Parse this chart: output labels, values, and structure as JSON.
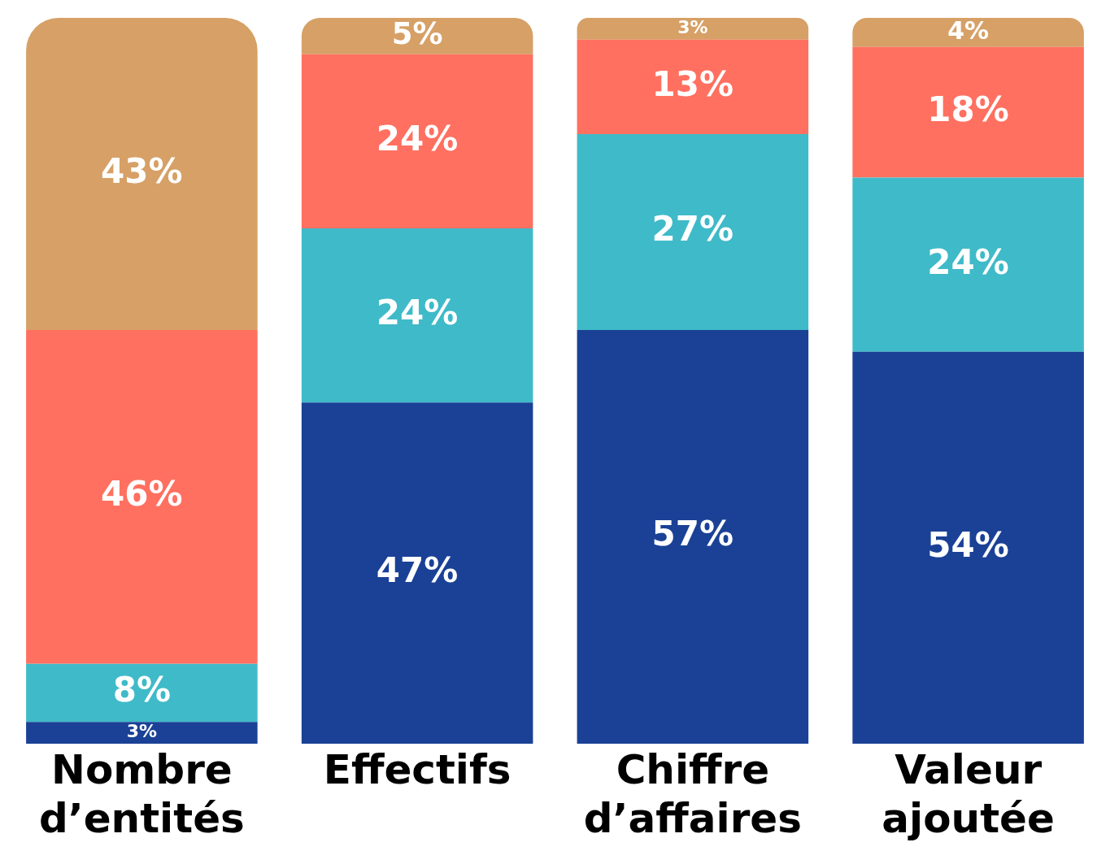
{
  "chart_data": {
    "type": "bar",
    "stacked": true,
    "grid": false,
    "legend": false,
    "tick_labels": "x",
    "categories": [
      "Nombre d’entités",
      "Effectifs",
      "Chiffre d’affaires",
      "Valeur ajoutée"
    ],
    "series": [
      {
        "color": "#1a4196",
        "values": [
          3,
          47,
          57,
          54
        ],
        "value_labels": [
          "3%",
          "47%",
          "57%",
          "54%"
        ]
      },
      {
        "color": "#3fbac8",
        "values": [
          8,
          24,
          27,
          24
        ],
        "value_labels": [
          "8%",
          "24%",
          "27%",
          "24%"
        ]
      },
      {
        "color": "#ff7060",
        "values": [
          46,
          24,
          13,
          18
        ],
        "value_labels": [
          "46%",
          "24%",
          "13%",
          "18%"
        ]
      },
      {
        "color": "#d6a066",
        "values": [
          43,
          5,
          3,
          4
        ],
        "value_labels": [
          "43%",
          "5%",
          "3%",
          "4%"
        ]
      }
    ]
  }
}
